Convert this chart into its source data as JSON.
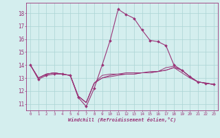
{
  "xlabel": "Windchill (Refroidissement éolien,°C)",
  "x": [
    0,
    1,
    2,
    3,
    4,
    5,
    6,
    7,
    8,
    9,
    10,
    11,
    12,
    13,
    14,
    15,
    16,
    17,
    18,
    19,
    20,
    21,
    22,
    23
  ],
  "line1": [
    14.0,
    12.9,
    13.2,
    13.3,
    13.3,
    13.2,
    11.5,
    10.8,
    12.2,
    14.0,
    15.9,
    18.3,
    17.9,
    17.6,
    16.7,
    15.9,
    15.8,
    15.5,
    14.0,
    13.6,
    13.1,
    12.7,
    12.6,
    12.5
  ],
  "line2": [
    14.0,
    13.0,
    13.3,
    13.4,
    13.3,
    13.2,
    11.6,
    11.1,
    12.6,
    13.2,
    13.3,
    13.3,
    13.3,
    13.3,
    13.4,
    13.4,
    13.5,
    13.8,
    13.9,
    13.6,
    13.1,
    12.7,
    12.6,
    12.5
  ],
  "line3": [
    14.0,
    13.0,
    13.3,
    13.4,
    13.3,
    13.2,
    11.6,
    11.1,
    12.6,
    13.0,
    13.2,
    13.3,
    13.4,
    13.4,
    13.4,
    13.5,
    13.5,
    13.6,
    13.8,
    13.6,
    13.1,
    12.7,
    12.6,
    12.5
  ],
  "line4": [
    14.0,
    13.0,
    13.3,
    13.4,
    13.3,
    13.2,
    11.6,
    11.1,
    12.6,
    13.0,
    13.1,
    13.2,
    13.3,
    13.3,
    13.4,
    13.4,
    13.5,
    13.6,
    13.8,
    13.4,
    13.0,
    12.7,
    12.6,
    12.5
  ],
  "line_color": "#993377",
  "bg_color": "#d4eeee",
  "grid_color": "#aad4d4",
  "ylim": [
    10.5,
    18.8
  ],
  "yticks": [
    11,
    12,
    13,
    14,
    15,
    16,
    17,
    18
  ],
  "xlim": [
    -0.5,
    23.5
  ]
}
